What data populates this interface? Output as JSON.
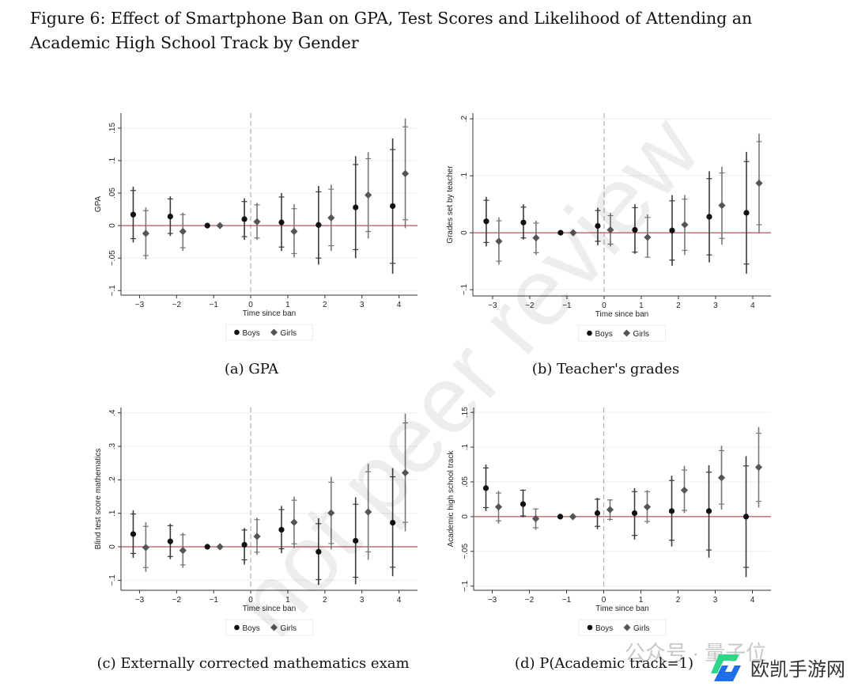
{
  "title": "Figure 6: Effect of Smartphone Ban on GPA, Test Scores and Likelihood of Attending an Academic High School Track by Gender",
  "captions": [
    "(a) GPA",
    "(b) Teacher's grades",
    "(c) Externally corrected mathematics exam",
    "(d) P(Academic track=1)"
  ],
  "watermarks": {
    "diagonal": "not peer review",
    "wechat": "公众号 · 量子位",
    "logo": "欧凯手游网"
  },
  "colors": {
    "boys": "#111111",
    "boys_ci": "#3a3a3a",
    "girls": "#555555",
    "girls_ci": "#777777",
    "zero_line": "#b5545c",
    "grid": "#eeeeee",
    "event_line": "#b0b0b0"
  },
  "chart_data": [
    {
      "type": "scatter",
      "title": "(a) GPA",
      "xlabel": "Time since ban",
      "ylabel": "GPA",
      "xlim": [
        -3.5,
        4.5
      ],
      "ylim": [
        -0.107,
        0.173
      ],
      "x": [
        -3,
        -2,
        -1,
        0,
        1,
        2,
        3,
        4
      ],
      "xtick_labels": [
        "−3",
        "−2",
        "−1",
        "0",
        "1",
        "2",
        "3",
        "4"
      ],
      "yticks": [
        -0.1,
        -0.05,
        0,
        0.05,
        0.1,
        0.15
      ],
      "ytick_labels": [
        "−.1",
        "−.05",
        "0",
        ".05",
        ".1",
        ".15"
      ],
      "legend": [
        "Boys",
        "Girls"
      ],
      "legend_position": "bottom",
      "series": [
        {
          "name": "Boys",
          "est": [
            0.017,
            0.014,
            0,
            0.01,
            0.005,
            0.001,
            0.028,
            0.03
          ],
          "lo95": [
            -0.026,
            -0.016,
            0,
            -0.022,
            -0.039,
            -0.06,
            -0.05,
            -0.074
          ],
          "hi95": [
            0.06,
            0.045,
            0,
            0.042,
            0.05,
            0.061,
            0.107,
            0.134
          ],
          "lo90": [
            -0.02,
            -0.012,
            0,
            -0.017,
            -0.033,
            -0.05,
            -0.037,
            -0.058
          ],
          "hi90": [
            0.054,
            0.041,
            0,
            0.037,
            0.044,
            0.052,
            0.094,
            0.117
          ]
        },
        {
          "name": "Girls",
          "est": [
            -0.012,
            -0.009,
            0,
            0.006,
            -0.009,
            0.012,
            0.047,
            0.08
          ],
          "lo95": [
            -0.052,
            -0.039,
            0,
            -0.022,
            -0.049,
            -0.039,
            -0.02,
            -0.004
          ],
          "hi95": [
            0.028,
            0.02,
            0,
            0.035,
            0.033,
            0.063,
            0.113,
            0.165
          ],
          "lo90": [
            -0.046,
            -0.034,
            0,
            -0.019,
            -0.043,
            -0.031,
            -0.009,
            0.009
          ],
          "hi90": [
            0.023,
            0.017,
            0,
            0.032,
            0.026,
            0.056,
            0.103,
            0.152
          ]
        }
      ]
    },
    {
      "type": "scatter",
      "title": "(b) Teacher's grades",
      "xlabel": "Time since ban",
      "ylabel": "Grades set by teacher",
      "xlim": [
        -3.53,
        4.49
      ],
      "ylim": [
        -0.111,
        0.21
      ],
      "x": [
        -3,
        -2,
        -1,
        0,
        1,
        2,
        3,
        4
      ],
      "xtick_labels": [
        "−3",
        "−2",
        "−1",
        "0",
        "1",
        "2",
        "3",
        "4"
      ],
      "yticks": [
        -0.1,
        0,
        0.1,
        0.2
      ],
      "ytick_labels": [
        "−.1",
        "0",
        ".1",
        ".2"
      ],
      "legend": [
        "Boys",
        "Girls"
      ],
      "legend_position": "bottom",
      "series": [
        {
          "name": "Boys",
          "est": [
            0.02,
            0.018,
            0,
            0.012,
            0.005,
            0.004,
            0.028,
            0.035
          ],
          "lo95": [
            -0.024,
            -0.012,
            0,
            -0.022,
            -0.037,
            -0.058,
            -0.052,
            -0.072
          ],
          "hi95": [
            0.063,
            0.05,
            0,
            0.044,
            0.05,
            0.066,
            0.108,
            0.142
          ],
          "lo90": [
            -0.017,
            -0.009,
            0,
            -0.015,
            -0.034,
            -0.048,
            -0.039,
            -0.055
          ],
          "hi90": [
            0.057,
            0.045,
            0,
            0.039,
            0.044,
            0.056,
            0.095,
            0.125
          ]
        },
        {
          "name": "Girls",
          "est": [
            -0.015,
            -0.009,
            0,
            0.005,
            -0.008,
            0.014,
            0.048,
            0.087
          ],
          "lo95": [
            -0.056,
            -0.039,
            0,
            -0.024,
            -0.044,
            -0.039,
            -0.021,
            0.0
          ],
          "hi95": [
            0.027,
            0.021,
            0,
            0.035,
            0.032,
            0.066,
            0.116,
            0.174
          ],
          "lo90": [
            -0.05,
            -0.035,
            0,
            -0.02,
            -0.043,
            -0.031,
            -0.01,
            0.014
          ],
          "hi90": [
            0.021,
            0.017,
            0,
            0.03,
            0.027,
            0.059,
            0.105,
            0.16
          ]
        }
      ]
    },
    {
      "type": "scatter",
      "title": "(c) Externally corrected mathematics exam",
      "xlabel": "Time since ban",
      "ylabel": "Blind test score mathematics",
      "xlim": [
        -3.5,
        4.5
      ],
      "ylim": [
        -0.13,
        0.416
      ],
      "x": [
        -3,
        -2,
        -1,
        0,
        1,
        2,
        3,
        4
      ],
      "xtick_labels": [
        "−3",
        "−2",
        "−1",
        "0",
        "1",
        "2",
        "3",
        "4"
      ],
      "yticks": [
        -0.1,
        0,
        0.1,
        0.2,
        0.3,
        0.4
      ],
      "ytick_labels": [
        "−.1",
        "0",
        ".1",
        ".2",
        ".3",
        ".4"
      ],
      "legend": [
        "Boys",
        "Girls"
      ],
      "legend_position": "bottom",
      "series": [
        {
          "name": "Boys",
          "est": [
            0.038,
            0.016,
            0,
            0.006,
            0.051,
            -0.015,
            0.018,
            0.072
          ],
          "lo95": [
            -0.033,
            -0.037,
            0,
            -0.053,
            -0.019,
            -0.114,
            -0.112,
            -0.088
          ],
          "hi95": [
            0.109,
            0.069,
            0,
            0.056,
            0.122,
            0.085,
            0.148,
            0.235
          ],
          "lo90": [
            -0.02,
            -0.029,
            0,
            -0.039,
            -0.006,
            -0.098,
            -0.091,
            -0.061
          ],
          "hi90": [
            0.098,
            0.063,
            0,
            0.05,
            0.111,
            0.069,
            0.127,
            0.209
          ]
        },
        {
          "name": "Girls",
          "est": [
            -0.002,
            -0.011,
            0,
            0.031,
            0.073,
            0.101,
            0.104,
            0.221
          ],
          "lo95": [
            -0.075,
            -0.063,
            0,
            -0.024,
            -0.004,
            -0.008,
            -0.039,
            0.046
          ],
          "hi95": [
            0.073,
            0.042,
            0,
            0.087,
            0.15,
            0.209,
            0.248,
            0.398
          ],
          "lo90": [
            -0.062,
            -0.054,
            0,
            -0.016,
            0.009,
            0.01,
            -0.015,
            0.073
          ],
          "hi90": [
            0.061,
            0.036,
            0,
            0.081,
            0.139,
            0.193,
            0.224,
            0.37
          ]
        }
      ]
    },
    {
      "type": "scatter",
      "title": "(d) P(Academic track=1)",
      "xlabel": "Time since ban",
      "ylabel": "Academic high school track",
      "xlim": [
        -3.5,
        4.5
      ],
      "ylim": [
        -0.106,
        0.157
      ],
      "x": [
        -3,
        -2,
        -1,
        0,
        1,
        2,
        3,
        4
      ],
      "xtick_labels": [
        "−3",
        "−2",
        "−1",
        "0",
        "1",
        "2",
        "3",
        "4"
      ],
      "yticks": [
        -0.1,
        -0.05,
        0,
        0.05,
        0.1,
        0.15
      ],
      "ytick_labels": [
        "−.1",
        "−.05",
        "0",
        ".05",
        ".1",
        ".15"
      ],
      "legend": [
        "Boys",
        "Girls"
      ],
      "legend_position": "bottom",
      "series": [
        {
          "name": "Boys",
          "est": [
            0.041,
            0.018,
            0,
            0.005,
            0.005,
            0.008,
            0.008,
            0.0
          ],
          "lo95": [
            0.008,
            -0.001,
            0,
            -0.018,
            -0.033,
            -0.043,
            -0.059,
            -0.087
          ],
          "hi95": [
            0.075,
            0.039,
            0,
            0.027,
            0.041,
            0.059,
            0.074,
            0.087
          ],
          "lo90": [
            0.013,
            0.001,
            0,
            -0.014,
            -0.027,
            -0.034,
            -0.048,
            -0.073
          ],
          "hi90": [
            0.07,
            0.038,
            0,
            0.025,
            0.036,
            0.052,
            0.064,
            0.073
          ]
        },
        {
          "name": "Girls",
          "est": [
            0.014,
            -0.003,
            0,
            0.01,
            0.014,
            0.038,
            0.056,
            0.071
          ],
          "lo95": [
            -0.01,
            -0.019,
            0,
            -0.006,
            -0.01,
            0.005,
            0.01,
            0.013
          ],
          "hi95": [
            0.037,
            0.012,
            0,
            0.025,
            0.038,
            0.073,
            0.102,
            0.129
          ],
          "lo90": [
            -0.006,
            -0.016,
            0,
            -0.004,
            -0.007,
            0.009,
            0.018,
            0.022
          ],
          "hi90": [
            0.034,
            0.011,
            0,
            0.024,
            0.036,
            0.067,
            0.095,
            0.12
          ]
        }
      ]
    }
  ]
}
